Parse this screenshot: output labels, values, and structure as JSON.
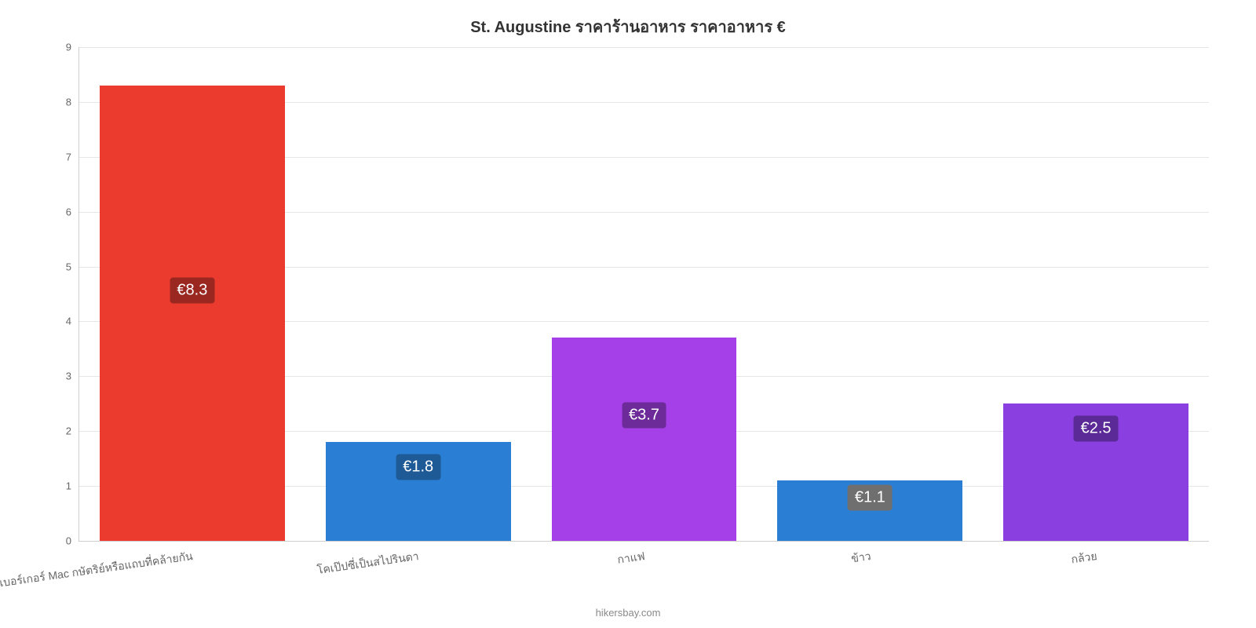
{
  "chart": {
    "type": "bar",
    "title": "St. Augustine ราคาร้านอาหาร ราคาอาหาร €",
    "title_fontsize": 20,
    "title_color": "#333333",
    "background_color": "#ffffff",
    "plot_background_color": "#ffffff",
    "grid_color": "#e6e6e6",
    "axis_line_color": "#cfcfcf",
    "ylim": [
      0,
      9
    ],
    "yticks": [
      0,
      1,
      2,
      3,
      4,
      5,
      6,
      7,
      8,
      9
    ],
    "ytick_fontsize": 13,
    "ytick_color": "#666666",
    "xlabel_fontsize": 14,
    "xlabel_color": "#666666",
    "xlabel_rotation_deg": 8,
    "bar_width_ratio": 0.82,
    "categories": [
      "เบอร์เกอร์ Mac กษัตริย์หรือแถบที่คล้ายกัน",
      "โคเป๊ปซี่เป็นสไปรินดา",
      "กาแฟ",
      "ข้าว",
      "กล้วย"
    ],
    "values": [
      8.3,
      1.8,
      3.7,
      1.1,
      2.5
    ],
    "value_labels": [
      "€8.3",
      "€1.8",
      "€3.7",
      "€1.1",
      "€2.5"
    ],
    "bar_colors": [
      "#eb3b2f",
      "#2a7fd5",
      "#a540e8",
      "#2a7fd5",
      "#8a3fe0"
    ],
    "label_badge_colors": [
      "#9a2720",
      "#1e5a96",
      "#6d2a99",
      "#6f6f6f",
      "#5b2a96"
    ],
    "label_badge_text_color": "#ffffff",
    "label_fontsize": 20,
    "attribution": "hikersbay.com",
    "attribution_fontsize": 13,
    "attribution_color": "#888888"
  }
}
